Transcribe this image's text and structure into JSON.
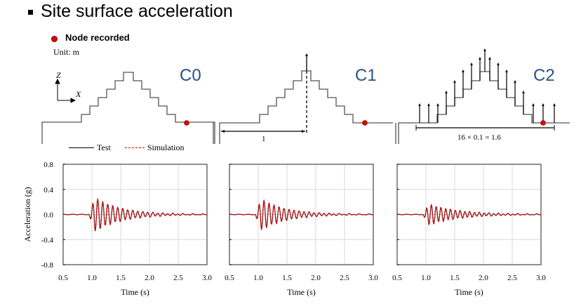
{
  "title": "Site surface acceleration",
  "legend_note": {
    "marker_label": "Node recorded",
    "unit": "Unit: m",
    "marker_color": "#e00000"
  },
  "diagrams": [
    {
      "case": "C0"
    },
    {
      "case": "C1",
      "dimension": "1"
    },
    {
      "case": "C2",
      "dimension": "16 × 0.1 = 1.6"
    }
  ],
  "axes_letters": {
    "z": "Z",
    "x": "X"
  },
  "legend": {
    "test": "Test",
    "simulation": "Simulation"
  },
  "colors": {
    "case_label": "#2b4f8c",
    "test": "#000000",
    "simulation": "#e00000",
    "grid": "#d9d9d9"
  },
  "chart_data": [
    {
      "type": "line",
      "title": "C0",
      "xlabel": "Time (s)",
      "ylabel": "Acceleration (g)",
      "xlim": [
        0.5,
        3.0
      ],
      "ylim": [
        -0.8,
        0.8
      ],
      "xticks": [
        "0.5",
        "1.0",
        "1.5",
        "2.0",
        "2.5",
        "3.0"
      ],
      "yticks": [
        "0.8",
        "0.4",
        "0.0",
        "-0.4",
        "-0.8"
      ],
      "grid": true,
      "legend": "top-left",
      "series": [
        {
          "name": "Test",
          "style": "solid",
          "onset": 0.95,
          "peak": 0.26,
          "decay": 2.2,
          "freq": 11.5
        },
        {
          "name": "Simulation",
          "style": "dashed",
          "onset": 0.95,
          "peak": 0.27,
          "decay": 2.1,
          "freq": 11.5
        }
      ]
    },
    {
      "type": "line",
      "title": "C1",
      "xlabel": "Time (s)",
      "ylabel": "Acceleration (g)",
      "xlim": [
        0.5,
        3.0
      ],
      "ylim": [
        -0.8,
        0.8
      ],
      "xticks": [
        "0.5",
        "1.0",
        "1.5",
        "2.0",
        "2.5",
        "3.0"
      ],
      "yticks": [
        "0.8",
        "0.4",
        "0.0",
        "-0.4",
        "-0.8"
      ],
      "grid": true,
      "series": [
        {
          "name": "Test",
          "style": "solid",
          "onset": 0.95,
          "peak": 0.24,
          "decay": 2.3,
          "freq": 11.5
        },
        {
          "name": "Simulation",
          "style": "dashed",
          "onset": 0.95,
          "peak": 0.25,
          "decay": 2.2,
          "freq": 11.5
        }
      ]
    },
    {
      "type": "line",
      "title": "C2",
      "xlabel": "Time (s)",
      "ylabel": "Acceleration (g)",
      "xlim": [
        0.5,
        3.0
      ],
      "ylim": [
        -0.8,
        0.8
      ],
      "xticks": [
        "0.5",
        "1.0",
        "1.5",
        "2.0",
        "2.5",
        "3.0"
      ],
      "yticks": [
        "0.8",
        "0.4",
        "0.0",
        "-0.4",
        "-0.8"
      ],
      "grid": true,
      "series": [
        {
          "name": "Test",
          "style": "solid",
          "onset": 0.95,
          "peak": 0.16,
          "decay": 2.0,
          "freq": 12.0
        },
        {
          "name": "Simulation",
          "style": "dashed",
          "onset": 0.95,
          "peak": 0.17,
          "decay": 1.9,
          "freq": 12.0
        }
      ]
    }
  ]
}
